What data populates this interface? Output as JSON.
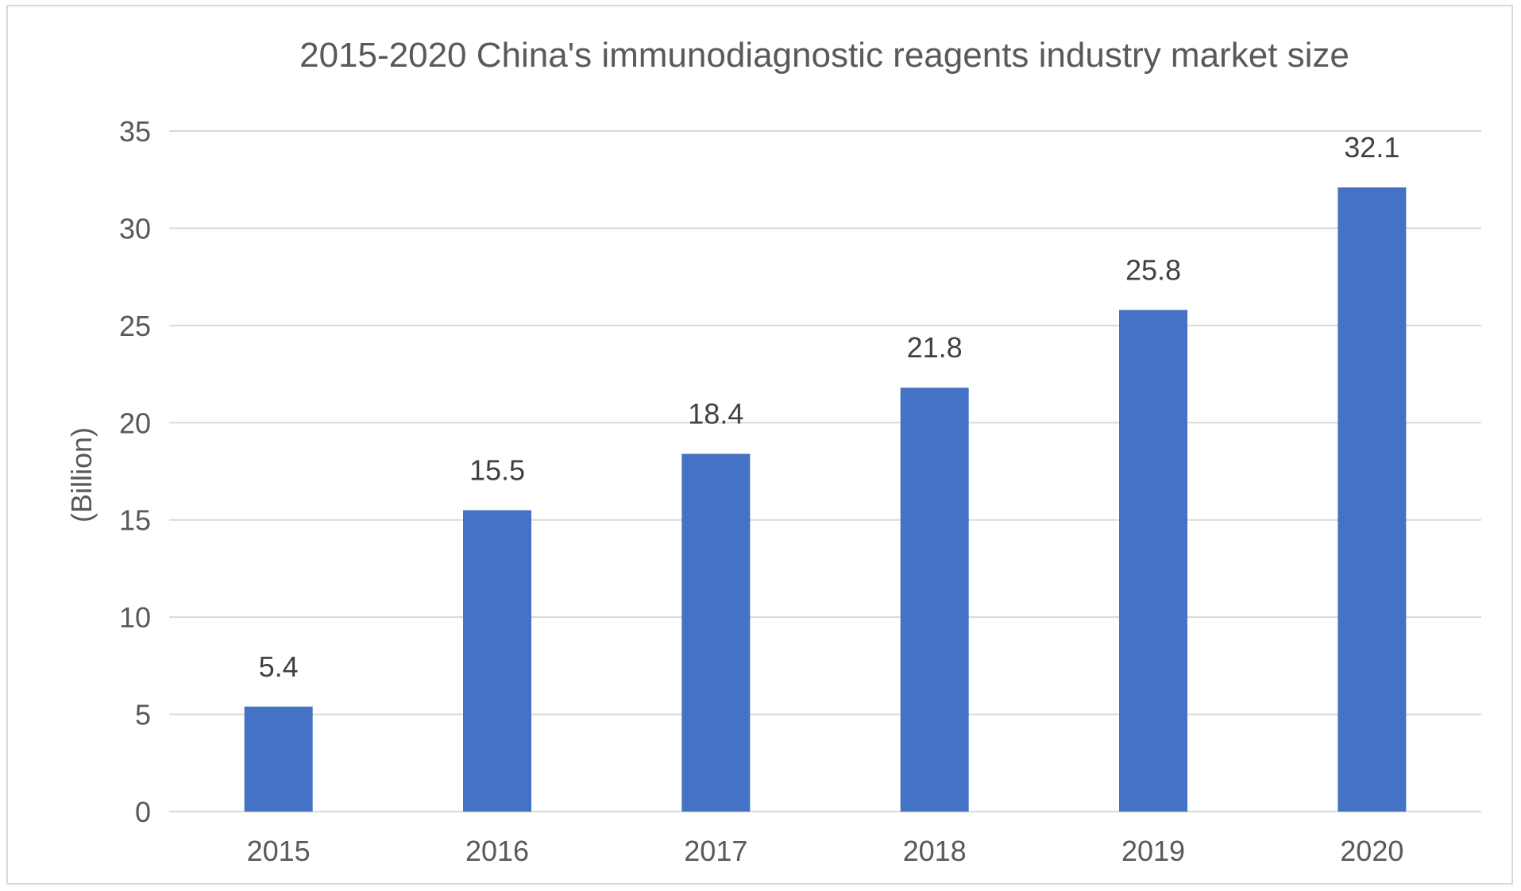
{
  "chart_data": {
    "type": "bar",
    "title": "2015-2020 China's immunodiagnostic reagents industry market size",
    "xlabel": "",
    "ylabel": "(Billion)",
    "categories": [
      "2015",
      "2016",
      "2017",
      "2018",
      "2019",
      "2020"
    ],
    "values": [
      5.4,
      15.5,
      18.4,
      21.8,
      25.8,
      32.1
    ],
    "data_labels": [
      "5.4",
      "15.5",
      "18.4",
      "21.8",
      "25.8",
      "32.1"
    ],
    "ylim": [
      0,
      35
    ],
    "yticks": [
      0,
      5,
      10,
      15,
      20,
      25,
      30,
      35
    ],
    "ytick_labels": [
      "0",
      "5",
      "10",
      "15",
      "20",
      "25",
      "30",
      "35"
    ],
    "grid": true,
    "legend": "none",
    "bar_color": "#4472c4",
    "grid_color": "#d9d9d9",
    "text_color": "#595959",
    "label_color": "#404040"
  }
}
